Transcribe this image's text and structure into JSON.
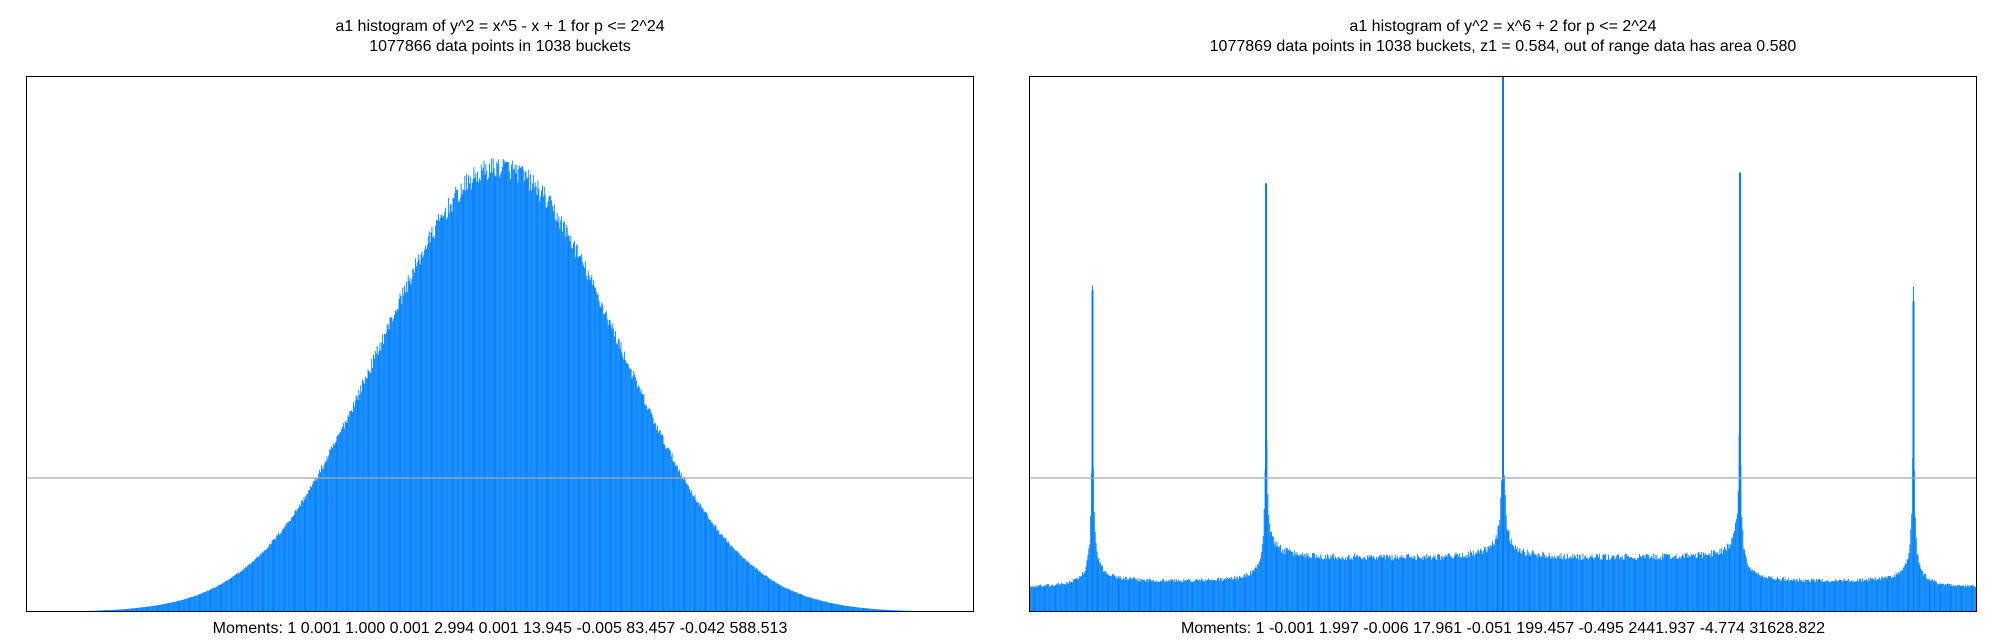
{
  "chart_data": [
    {
      "type": "bar",
      "title": "a1 histogram of y^2 = x^5 - x + 1 for p <= 2^24",
      "subtitle": "1077866 data points in 1038 buckets",
      "moments": "Moments: 1   0.001   1.000   0.001   2.994   0.001   13.945   -0.005   83.457   -0.042   588.513",
      "xlim": [
        -4,
        4
      ],
      "reference_line": 0.25,
      "ylim": [
        0,
        1
      ],
      "shape": "gaussian",
      "peak": 0.83,
      "sigma": 1,
      "num_buckets": 1038,
      "bar_color": "#0080ff",
      "ref_line_color": "#a6a6a6",
      "grid": false
    },
    {
      "type": "bar",
      "title": "a1 histogram of y^2 = x^6 + 2 for p <= 2^24",
      "subtitle": "1077869 data points in 1038 buckets, z1 = 0.584, out of range data has area 0.580",
      "moments": "Moments: 1   -0.001   1.997   -0.006   17.961   -0.051   199.457   -0.495   2441.937   -4.774   31628.822",
      "xlim": [
        -4,
        4
      ],
      "reference_line": 0.25,
      "ylim": [
        0,
        1
      ],
      "shape": "multi-arcsine",
      "segments": [
        {
          "x0": -4,
          "x1": -3.464,
          "height": 0.04
        },
        {
          "x0": -3.464,
          "x1": -2,
          "height": 0.05
        },
        {
          "x0": -2,
          "x1": 2,
          "height": 0.095
        },
        {
          "x0": 2,
          "x1": 3.464,
          "height": 0.05
        },
        {
          "x0": 3.464,
          "x1": 4,
          "height": 0.04
        }
      ],
      "spikes": [
        {
          "x": -3.464,
          "height": 0.6
        },
        {
          "x": -2,
          "height": 0.8
        },
        {
          "x": 0,
          "height": 1.0
        },
        {
          "x": 2,
          "height": 0.82
        },
        {
          "x": 3.464,
          "height": 0.58
        }
      ],
      "num_buckets": 1038,
      "bar_color": "#0080ff",
      "ref_line_color": "#a6a6a6",
      "grid": false
    }
  ]
}
